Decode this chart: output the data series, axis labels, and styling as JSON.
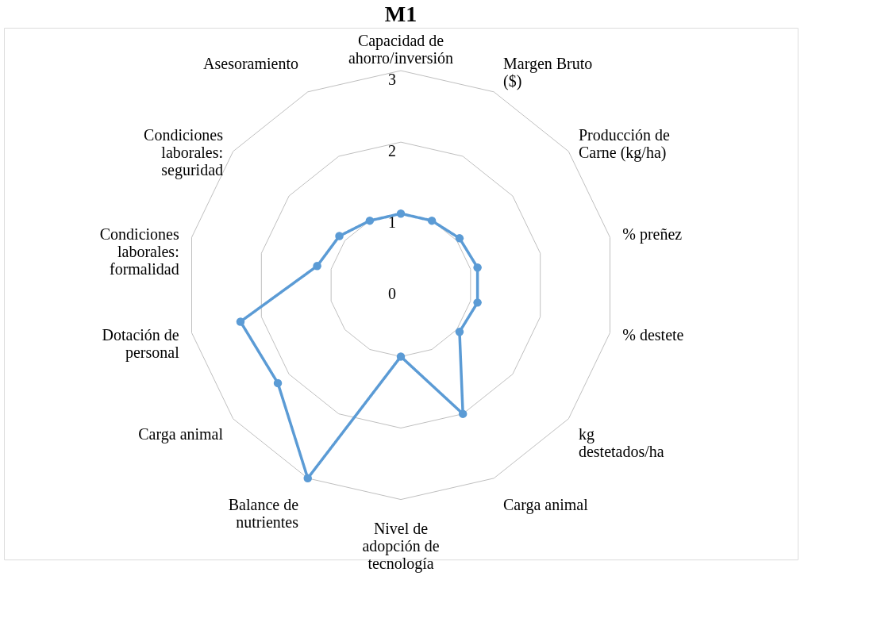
{
  "chart_data": {
    "type": "radar",
    "title": "M1",
    "categories": [
      "Capacidad de ahorro/inversión",
      "Margen Bruto ($)",
      "Producción de Carne (kg/ha)",
      "% preñez",
      "% destete",
      "kg destetados/ha",
      "Carga animal",
      "Nivel de adopción de tecnología",
      "Balance de nutrientes",
      "Carga animal",
      "Dotación de personal",
      "Condiciones laborales: formalidad",
      "Condiciones laborales: seguridad",
      "Asesoramiento"
    ],
    "series": [
      {
        "color": "#5b9bd5",
        "values": [
          1.0,
          1.0,
          1.05,
          1.1,
          1.1,
          1.05,
          2.0,
          1.0,
          3.0,
          2.2,
          2.3,
          1.2,
          1.1,
          1.0
        ]
      }
    ],
    "ylim": [
      0,
      3
    ],
    "yticks": [
      0,
      1,
      2,
      3
    ],
    "grid": true,
    "legend": false,
    "marker": "circle",
    "line_style": "solid"
  }
}
